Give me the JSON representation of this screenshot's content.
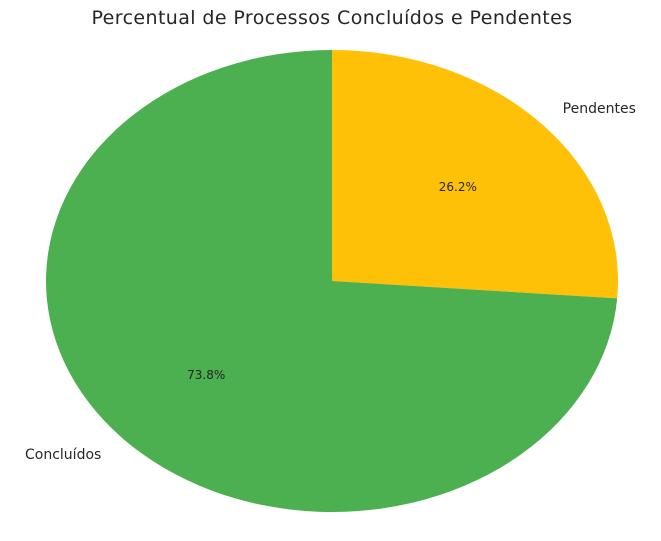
{
  "chart_data": {
    "type": "pie",
    "title": "Percentual de Processos Concluídos e Pendentes",
    "categories": [
      "Pendentes",
      "Concluídos"
    ],
    "values": [
      26.2,
      73.8
    ],
    "percent_labels": [
      "26.2%",
      "73.8%"
    ],
    "colors": [
      "#ffc107",
      "#4caf50"
    ],
    "start_angle_deg": 90,
    "direction": "clockwise",
    "legend": "none",
    "grid": false
  }
}
